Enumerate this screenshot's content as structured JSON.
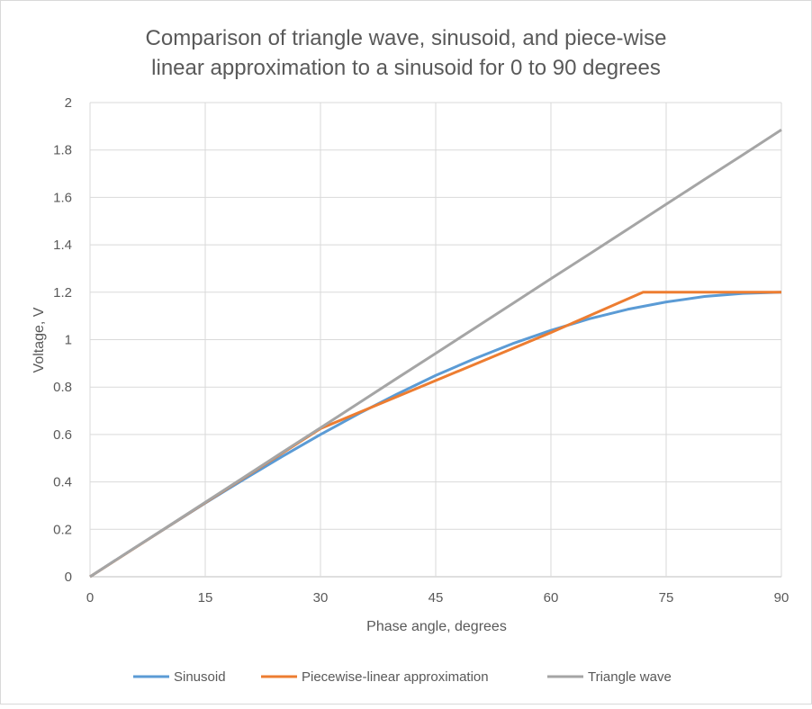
{
  "chart_data": {
    "type": "line",
    "title_lines": [
      "Comparison of triangle wave, sinusoid, and piece-wise",
      "linear approximation to a sinusoid for 0 to 90 degrees"
    ],
    "xlabel": "Phase angle, degrees",
    "ylabel": "Voltage, V",
    "xlim": [
      0,
      90
    ],
    "ylim": [
      0,
      2
    ],
    "xticks": [
      0,
      15,
      30,
      45,
      60,
      75,
      90
    ],
    "yticks": [
      0,
      0.2,
      0.4,
      0.6,
      0.8,
      1,
      1.2,
      1.4,
      1.6,
      1.8,
      2
    ],
    "grid": true,
    "legend_position": "bottom",
    "series": [
      {
        "name": "Sinusoid",
        "color": "#5B9BD5",
        "x": [
          0,
          5,
          10,
          15,
          20,
          25,
          30,
          35,
          40,
          45,
          50,
          55,
          60,
          65,
          70,
          75,
          80,
          85,
          90
        ],
        "y": [
          0,
          0.105,
          0.208,
          0.311,
          0.41,
          0.507,
          0.6,
          0.688,
          0.771,
          0.849,
          0.919,
          0.983,
          1.039,
          1.088,
          1.128,
          1.159,
          1.182,
          1.195,
          1.2
        ]
      },
      {
        "name": "Piecewise-linear approximation",
        "color": "#ED7D31",
        "x": [
          0,
          30,
          60,
          72,
          90
        ],
        "y": [
          0,
          0.625,
          1.03,
          1.2,
          1.2
        ]
      },
      {
        "name": "Triangle wave",
        "color": "#A5A5A5",
        "x": [
          0,
          5,
          10,
          15,
          20,
          25,
          30,
          35,
          40,
          45,
          50,
          55,
          60,
          65,
          70,
          75,
          80,
          85,
          90
        ],
        "y": [
          0,
          0.105,
          0.209,
          0.314,
          0.419,
          0.524,
          0.628,
          0.733,
          0.838,
          0.942,
          1.047,
          1.152,
          1.257,
          1.361,
          1.466,
          1.571,
          1.676,
          1.78,
          1.885
        ]
      }
    ]
  }
}
